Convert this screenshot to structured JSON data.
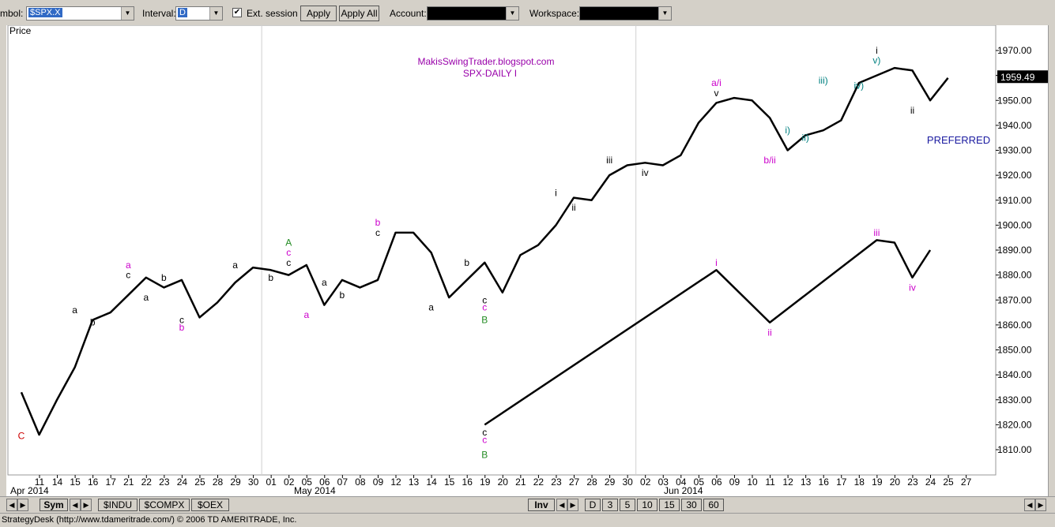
{
  "toolbar": {
    "symbol_label": "mbol:",
    "symbol_value": "$SPX.X",
    "interval_label": "Interval:",
    "interval_value": "D",
    "ext_session_label": "Ext. session",
    "apply_label": "Apply",
    "apply_all_label": "Apply All",
    "account_label": "Account:",
    "workspace_label": "Workspace:"
  },
  "chart_data": {
    "type": "line",
    "title": "MakisSwingTrader.blogspot.com",
    "subtitle": "SPX-DAILY  I",
    "ylabel": "Price",
    "ylim": [
      1800,
      1980
    ],
    "y_ticks": [
      "1810.00",
      "1820.00",
      "1830.00",
      "1840.00",
      "1850.00",
      "1860.00",
      "1870.00",
      "1880.00",
      "1890.00",
      "1900.00",
      "1910.00",
      "1920.00",
      "1930.00",
      "1940.00",
      "1950.00",
      "1960.00",
      "1970.00"
    ],
    "last_price": "1959.49",
    "x_ticks": [
      "11",
      "14",
      "15",
      "16",
      "17",
      "21",
      "22",
      "23",
      "24",
      "25",
      "28",
      "29",
      "30",
      "01",
      "02",
      "05",
      "06",
      "07",
      "08",
      "09",
      "12",
      "13",
      "14",
      "15",
      "16",
      "19",
      "20",
      "21",
      "22",
      "23",
      "27",
      "28",
      "29",
      "30",
      "02",
      "03",
      "04",
      "05",
      "06",
      "09",
      "10",
      "11",
      "12",
      "13",
      "16",
      "17",
      "18",
      "19",
      "20",
      "23",
      "24",
      "25",
      "27"
    ],
    "month_labels": [
      "Apr 2014",
      "May 2014",
      "Jun 2014"
    ],
    "annotation": "PREFERRED",
    "series": [
      {
        "values": [
          1833,
          1816,
          1830,
          1843,
          1862,
          1865,
          1872,
          1879,
          1875,
          1878,
          1863,
          1869,
          1877,
          1883,
          1882,
          1880,
          1884,
          1868,
          1878,
          1875,
          1878,
          1897,
          1897,
          1889,
          1871,
          1878,
          1885,
          1873,
          1888,
          1892,
          1900,
          1911,
          1910,
          1920,
          1924,
          1925,
          1924,
          1928,
          1941,
          1949,
          1951,
          1950,
          1943,
          1930,
          1936,
          1938,
          1942,
          1957,
          1960,
          1963,
          1962,
          1950,
          1959
        ]
      },
      {
        "x": [
          "20",
          "09",
          "12",
          "20",
          "23",
          "24",
          "25"
        ],
        "values": [
          1820,
          1882,
          1861,
          1894,
          1893,
          1879,
          1890
        ]
      }
    ],
    "wave_labels": [
      {
        "text": "C",
        "x": "11",
        "y": 1815.5,
        "color": "#cc0000"
      },
      {
        "text": "a",
        "x": "16",
        "y": 1866,
        "color": "#000"
      },
      {
        "text": "b",
        "x": "17",
        "y": 1861,
        "color": "#000"
      },
      {
        "text": "a",
        "x": "22",
        "y": 1884,
        "color": "#cc00cc"
      },
      {
        "text": "c",
        "x": "22",
        "y": 1880,
        "color": "#000"
      },
      {
        "text": "a",
        "x": "23",
        "y": 1871,
        "color": "#000"
      },
      {
        "text": "b",
        "x": "24",
        "y": 1879,
        "color": "#000"
      },
      {
        "text": "c",
        "x": "25",
        "y": 1862,
        "color": "#000"
      },
      {
        "text": "b",
        "x": "25",
        "y": 1859,
        "color": "#cc00cc"
      },
      {
        "text": "a",
        "x": "30",
        "y": 1884,
        "color": "#000"
      },
      {
        "text": "b",
        "x": "02",
        "y": 1879,
        "color": "#000"
      },
      {
        "text": "A",
        "x": "05",
        "y": 1893,
        "color": "#228b22"
      },
      {
        "text": "c",
        "x": "05",
        "y": 1889,
        "color": "#cc00cc"
      },
      {
        "text": "c",
        "x": "05",
        "y": 1885,
        "color": "#000"
      },
      {
        "text": "a",
        "x": "06",
        "y": 1864,
        "color": "#cc00cc"
      },
      {
        "text": "a",
        "x": "07",
        "y": 1877,
        "color": "#000"
      },
      {
        "text": "b",
        "x": "08",
        "y": 1872,
        "color": "#000"
      },
      {
        "text": "b",
        "x": "12",
        "y": 1901,
        "color": "#cc00cc"
      },
      {
        "text": "c",
        "x": "12",
        "y": 1897,
        "color": "#000"
      },
      {
        "text": "a",
        "x": "15",
        "y": 1867,
        "color": "#000"
      },
      {
        "text": "b",
        "x": "19",
        "y": 1885,
        "color": "#000"
      },
      {
        "text": "c",
        "x": "20",
        "y": 1870,
        "color": "#000"
      },
      {
        "text": "c",
        "x": "20",
        "y": 1867,
        "color": "#cc00cc"
      },
      {
        "text": "B",
        "x": "20",
        "y": 1862,
        "color": "#228b22"
      },
      {
        "text": "c",
        "x": "20",
        "y": 1817,
        "color": "#000"
      },
      {
        "text": "c",
        "x": "20",
        "y": 1814,
        "color": "#cc00cc"
      },
      {
        "text": "B",
        "x": "20",
        "y": 1808,
        "color": "#228b22"
      },
      {
        "text": "i",
        "x": "27",
        "y": 1913,
        "color": "#000"
      },
      {
        "text": "ii",
        "x": "28",
        "y": 1907,
        "color": "#000"
      },
      {
        "text": "iii",
        "x": "30",
        "y": 1926,
        "color": "#000"
      },
      {
        "text": "iv",
        "x": "03",
        "y": 1921,
        "color": "#000"
      },
      {
        "text": "a/i",
        "x": "09",
        "y": 1957,
        "color": "#cc00cc"
      },
      {
        "text": "v",
        "x": "09",
        "y": 1953,
        "color": "#000"
      },
      {
        "text": "b/ii",
        "x": "12",
        "y": 1926,
        "color": "#cc00cc"
      },
      {
        "text": "i)",
        "x": "13",
        "y": 1938,
        "color": "#008080"
      },
      {
        "text": "ii)",
        "x": "16",
        "y": 1935,
        "color": "#008080"
      },
      {
        "text": "iii)",
        "x": "17",
        "y": 1958,
        "color": "#008080"
      },
      {
        "text": "iv)",
        "x": "19",
        "y": 1956,
        "color": "#008080"
      },
      {
        "text": "i",
        "x": "20",
        "y": 1970,
        "color": "#000"
      },
      {
        "text": "v)",
        "x": "20",
        "y": 1966,
        "color": "#008080"
      },
      {
        "text": "ii",
        "x": "24",
        "y": 1946,
        "color": "#000"
      },
      {
        "text": "i",
        "x": "09",
        "y": 1885,
        "color": "#cc00cc"
      },
      {
        "text": "ii",
        "x": "12",
        "y": 1857,
        "color": "#cc00cc"
      },
      {
        "text": "iii",
        "x": "20",
        "y": 1897,
        "color": "#cc00cc"
      },
      {
        "text": "iv",
        "x": "24",
        "y": 1875,
        "color": "#cc00cc"
      }
    ]
  },
  "bottom_bar": {
    "tabs_left": [
      "Sym",
      "$INDU",
      "$COMPX",
      "$OEX"
    ],
    "tabs_right": [
      "Inv",
      "D",
      "3",
      "5",
      "10",
      "15",
      "30",
      "60"
    ]
  },
  "status": {
    "text": "StrategyDesk (http://www.tdameritrade.com/) © 2006 TD AMERITRADE, Inc."
  }
}
